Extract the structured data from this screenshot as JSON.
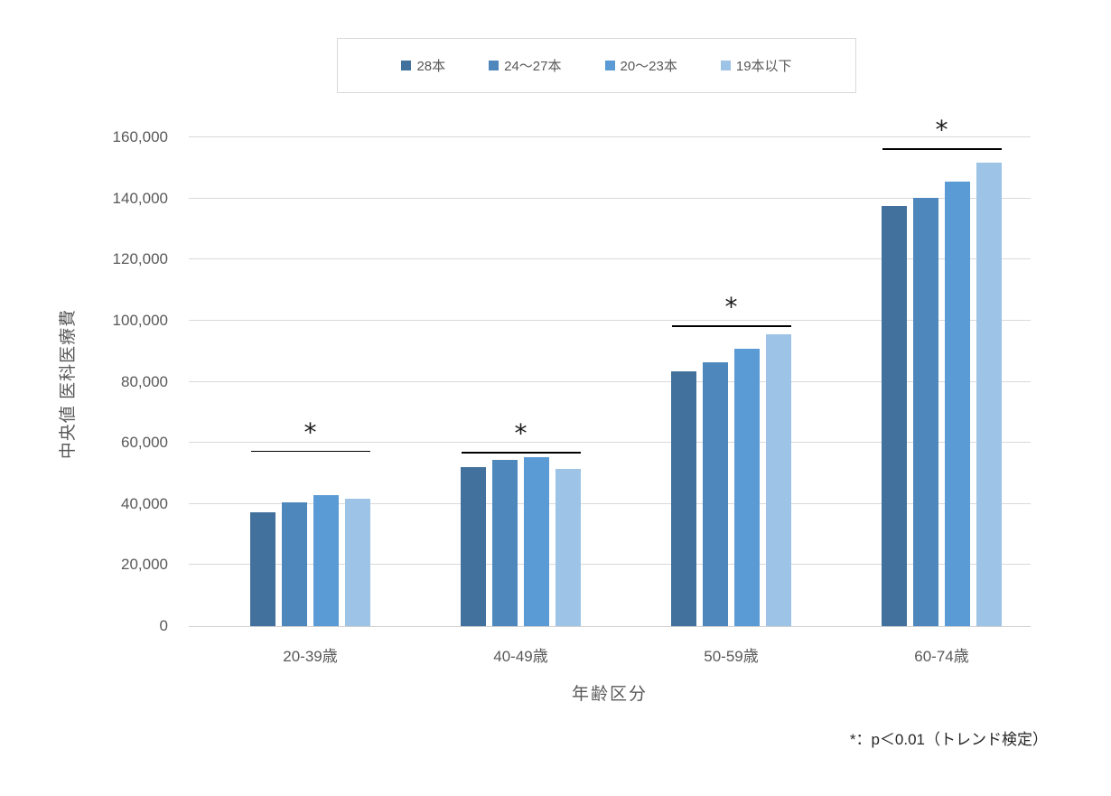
{
  "chart_data": {
    "type": "bar",
    "title": "",
    "categories": [
      "20-39歳",
      "40-49歳",
      "50-59歳",
      "60-74歳"
    ],
    "series": [
      {
        "name": "28本",
        "color": "#41719C",
        "values": [
          37400,
          52000,
          83300,
          137500
        ]
      },
      {
        "name": "24〜27本",
        "color": "#4E87BC",
        "values": [
          40500,
          54400,
          86500,
          140200
        ]
      },
      {
        "name": "20〜23本",
        "color": "#5B9BD5",
        "values": [
          42800,
          55300,
          90700,
          145600
        ]
      },
      {
        "name": "19本以下",
        "color": "#9DC3E6",
        "values": [
          41800,
          51500,
          95600,
          151700
        ]
      }
    ],
    "xlabel": "年齢区分",
    "ylabel": "中央値 医科医療費",
    "ylim": [
      0,
      160000
    ],
    "ytick_step": 20000,
    "ytick_labels": [
      "0",
      "20,000",
      "40,000",
      "60,000",
      "80,000",
      "100,000",
      "120,000",
      "140,000",
      "160,000"
    ],
    "grid": true,
    "legend_position": "top",
    "annotations": {
      "significance_marker": "*",
      "marked_groups": [
        true,
        true,
        true,
        true
      ],
      "sig_line_values": [
        57500,
        57000,
        98400,
        156400
      ]
    },
    "footnote": "*：p＜0.01（トレンド検定）",
    "colors": {
      "gridline": "#d9d9d9",
      "axis_text": "#595959",
      "annotation": "#000000"
    }
  }
}
